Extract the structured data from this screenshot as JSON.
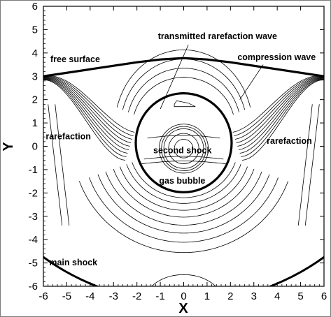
{
  "chart_data": {
    "type": "contour",
    "xlabel": "X",
    "ylabel": "Y",
    "xlim": [
      -6,
      6
    ],
    "ylim": [
      -6,
      6
    ],
    "xticks": [
      "-6",
      "-5",
      "-4",
      "-3",
      "-2",
      "-1",
      "0",
      "1",
      "2",
      "3",
      "4",
      "5",
      "6"
    ],
    "yticks": [
      "-6",
      "-5",
      "-4",
      "-3",
      "-2",
      "-1",
      "0",
      "1",
      "2",
      "3",
      "4",
      "5",
      "6"
    ],
    "grid": false,
    "colors": {
      "lines": "#000000",
      "background": "#ffffff"
    },
    "annotations": [
      {
        "text": "transmitted rarefaction wave",
        "x": -1.1,
        "y": 4.6
      },
      {
        "text": "free surface",
        "x": -5.7,
        "y": 3.6
      },
      {
        "text": "compression wave",
        "x": 2.3,
        "y": 3.7
      },
      {
        "text": "rarefaction",
        "x": -5.9,
        "y": 0.3
      },
      {
        "text": "rarefaction",
        "x": 3.55,
        "y": 0.1
      },
      {
        "text": "second shock",
        "x": -1.3,
        "y": -0.3
      },
      {
        "text": "gas bubble",
        "x": -1.05,
        "y": -1.6
      },
      {
        "text": "main shock",
        "x": -5.75,
        "y": -5.1
      }
    ],
    "bold_curves": {
      "free_surface": [
        [
          -6,
          3.0
        ],
        [
          -4,
          3.3
        ],
        [
          -2,
          3.6
        ],
        [
          -1,
          3.72
        ],
        [
          0,
          3.78
        ],
        [
          1,
          3.72
        ],
        [
          2,
          3.6
        ],
        [
          4,
          3.3
        ],
        [
          6,
          3.0
        ]
      ],
      "gas_bubble": {
        "cx": 0,
        "cy": 0.15,
        "rx": 2.05,
        "ry": 2.12
      },
      "main_shock": {
        "cx": 0,
        "cy": 3.5,
        "r": 10.2
      }
    },
    "contour_families": {
      "lower_rings": {
        "cx": 0,
        "cy": 0.1,
        "radii": [
          2.35,
          2.6,
          2.9,
          3.2,
          3.55,
          3.9,
          4.3,
          4.75
        ]
      },
      "inner_bubble": {
        "cx": 0,
        "cy": -0.1,
        "radii": [
          0.4,
          0.65,
          0.85,
          0.95,
          1.05
        ]
      }
    }
  }
}
